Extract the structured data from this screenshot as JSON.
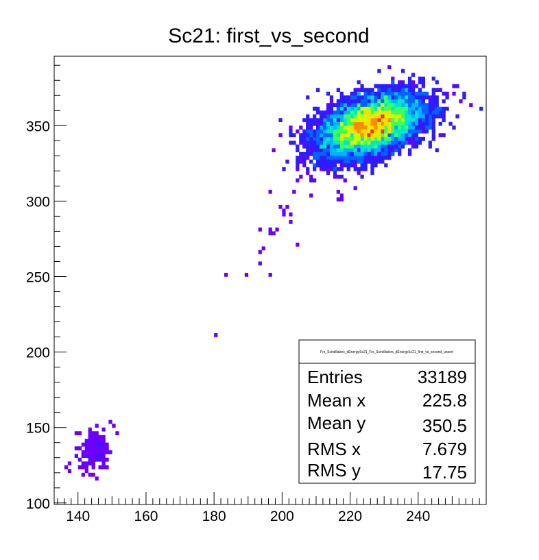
{
  "chart_data": {
    "type": "heatmap",
    "title": "Sc21: first_vs_second",
    "xlabel": "",
    "ylabel": "",
    "xlim": [
      133,
      260
    ],
    "ylim": [
      99,
      396
    ],
    "x_ticks": [
      140,
      160,
      180,
      200,
      220,
      240
    ],
    "y_ticks": [
      100,
      150,
      200,
      250,
      300,
      350
    ],
    "palette": [
      "#6a00ff",
      "#2d1cff",
      "#0064ff",
      "#00b4ff",
      "#00e8c8",
      "#3cff5a",
      "#c8ff00",
      "#ffdc00",
      "#ff8c00",
      "#ff2a00"
    ],
    "clusters": [
      {
        "name": "",
        "center_x": 226,
        "center_y": 350,
        "spread_x": 7.7,
        "spread_y": 10.5,
        "tilt": 0.45
      },
      {
        "name": "",
        "center_x": 145,
        "center_y": 135,
        "spread_x": 2.2,
        "spread_y": 7.0,
        "tilt": 0.1
      }
    ],
    "scattered_bins": [
      [
        180.5,
        211
      ],
      [
        183,
        250
      ],
      [
        189,
        250
      ],
      [
        193,
        259
      ],
      [
        193,
        265
      ],
      [
        194,
        269
      ],
      [
        196,
        251
      ],
      [
        196,
        278
      ],
      [
        196,
        281
      ],
      [
        197,
        279
      ],
      [
        198,
        281
      ],
      [
        193,
        282
      ],
      [
        199,
        297
      ],
      [
        200,
        293
      ],
      [
        200,
        290
      ],
      [
        201,
        295
      ],
      [
        202,
        285
      ],
      [
        202,
        290
      ],
      [
        204,
        270
      ],
      [
        204,
        313
      ],
      [
        204,
        320
      ],
      [
        196,
        307
      ],
      [
        205,
        317
      ],
      [
        207,
        318
      ],
      [
        209,
        314
      ],
      [
        210,
        323
      ],
      [
        211,
        320
      ],
      [
        212,
        326
      ],
      [
        213,
        321
      ],
      [
        214,
        327
      ],
      [
        215,
        318
      ],
      [
        216,
        305
      ],
      [
        216,
        302
      ],
      [
        217,
        301
      ],
      [
        217,
        304
      ],
      [
        218,
        332
      ],
      [
        208,
        303
      ],
      [
        203,
        305
      ],
      [
        231,
        388
      ],
      [
        238,
        384
      ],
      [
        245,
        378
      ],
      [
        248,
        372
      ],
      [
        250,
        376
      ],
      [
        252,
        366
      ],
      [
        255,
        364
      ],
      [
        242,
        360
      ],
      [
        244,
        354
      ],
      [
        246,
        358
      ],
      [
        136,
        124
      ],
      [
        137,
        125
      ],
      [
        150,
        150
      ],
      [
        149,
        153
      ],
      [
        151,
        146
      ],
      [
        148,
        128
      ]
    ],
    "stats_box": {
      "name": "Frs_Scintillators_dEnergySc21_Frs_Scintillators_dEnergySc21_first_vs_second_unsort",
      "rows": [
        {
          "key": "Entries",
          "value": "33189"
        },
        {
          "key": "Mean x",
          "value": "225.8"
        },
        {
          "key": "Mean y",
          "value": "350.5"
        },
        {
          "key": "RMS x",
          "value": "7.679"
        },
        {
          "key": "RMS y",
          "value": "17.75"
        }
      ]
    }
  }
}
